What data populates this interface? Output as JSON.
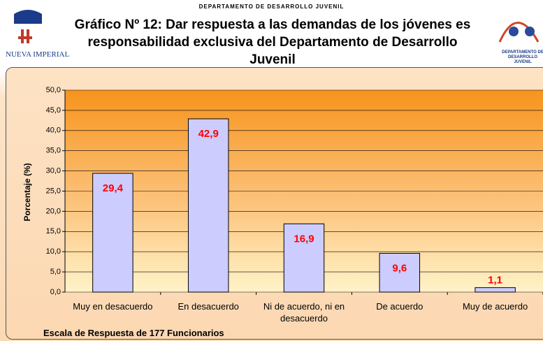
{
  "header": "DEPARTAMENTO DE DESARROLLO JUVENIL",
  "logos": {
    "left": "NUEVA IMPERIAL",
    "right": "DEPARTAMENTO DE DESARROLLO JUVENIL"
  },
  "chart_data": {
    "type": "bar",
    "title": "Gráfico Nº 12: Dar respuesta a las demandas de los jóvenes es responsabilidad exclusiva del Departamento de Desarrollo Juvenil",
    "y_label": "Porcentaje (%)",
    "x_label": "Escala de Respuesta de 177 Funcionarios",
    "categories": [
      "Muy en desacuerdo",
      "En desacuerdo",
      "Ni de acuerdo, ni en desacuerdo",
      "De acuerdo",
      "Muy de acuerdo"
    ],
    "values": [
      29.4,
      42.9,
      16.9,
      9.6,
      1.1
    ],
    "value_labels": [
      "29,4",
      "42,9",
      "16,9",
      "9,6",
      "1,1"
    ],
    "color": "#ccccff",
    "value_label_color": "#ff0000",
    "ylim": [
      0,
      50
    ],
    "yticks": [
      {
        "value": 0,
        "label": "0,0"
      },
      {
        "value": 5,
        "label": "5,0"
      },
      {
        "value": 10,
        "label": "10,0"
      },
      {
        "value": 15,
        "label": "15,0"
      },
      {
        "value": 20,
        "label": "20,0"
      },
      {
        "value": 25,
        "label": "25,0"
      },
      {
        "value": 30,
        "label": "30,0"
      },
      {
        "value": 35,
        "label": "35,0"
      },
      {
        "value": 40,
        "label": "40,0"
      },
      {
        "value": 45,
        "label": "45,0"
      },
      {
        "value": 50,
        "label": "50,0"
      }
    ],
    "grid": true
  }
}
